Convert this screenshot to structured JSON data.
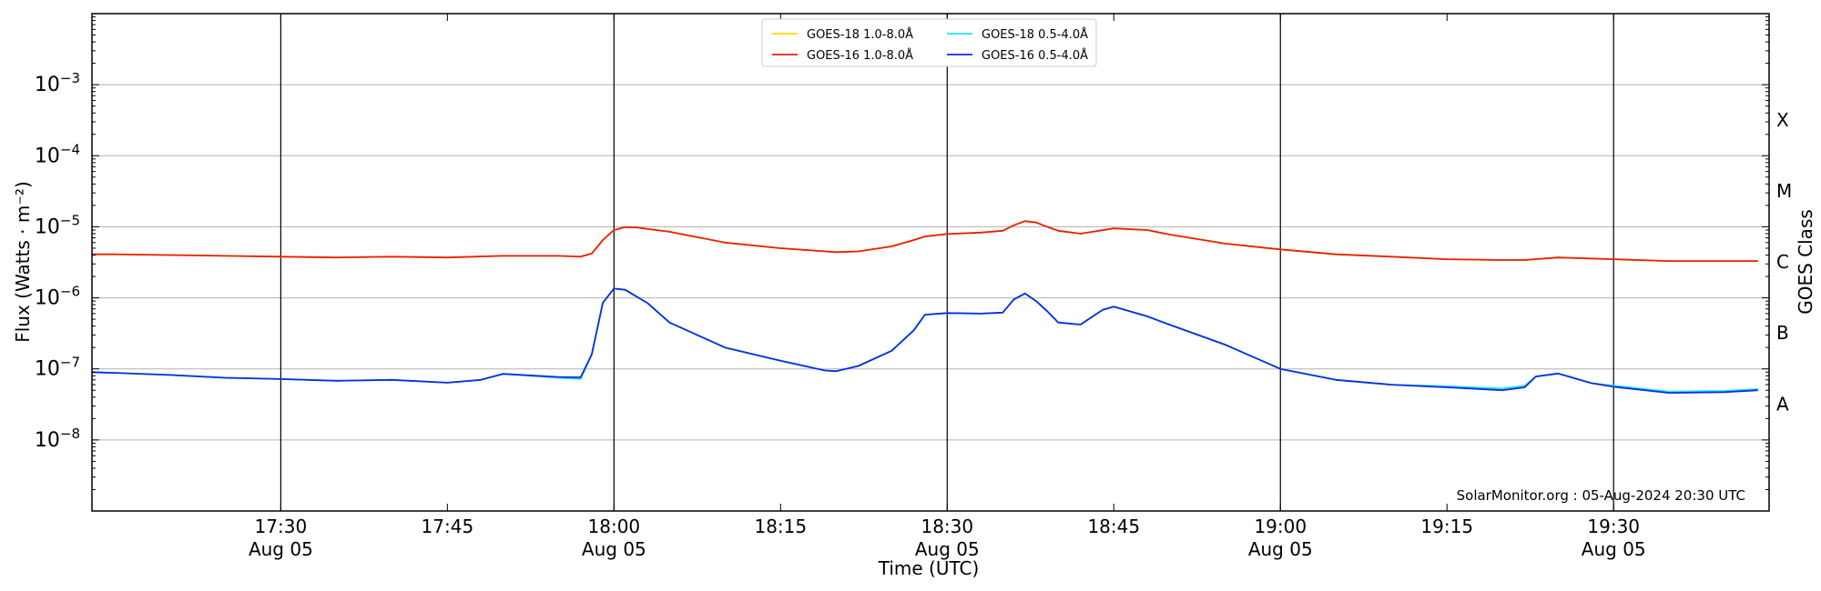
{
  "chart_data": {
    "type": "line",
    "xlabel": "Time (UTC)",
    "ylabel": "Flux (Watts · m⁻²)",
    "right_label": "GOES Class",
    "y_scale": "log",
    "ylim": [
      1e-09,
      0.01
    ],
    "xlim": [
      "17:13",
      "19:44"
    ],
    "grid": "horizontal at decades; vertical lines at 30-minute marks",
    "legend_placement": "top-center",
    "footer": "SolarMonitor.org : 05-Aug-2024 20:30 UTC",
    "x_ticks": [
      {
        "time": "17:30",
        "label": "17:30",
        "sub": "Aug 05"
      },
      {
        "time": "17:45",
        "label": "17:45",
        "sub": ""
      },
      {
        "time": "18:00",
        "label": "18:00",
        "sub": "Aug 05"
      },
      {
        "time": "18:15",
        "label": "18:15",
        "sub": ""
      },
      {
        "time": "18:30",
        "label": "18:30",
        "sub": "Aug 05"
      },
      {
        "time": "18:45",
        "label": "18:45",
        "sub": ""
      },
      {
        "time": "19:00",
        "label": "19:00",
        "sub": "Aug 05"
      },
      {
        "time": "19:15",
        "label": "19:15",
        "sub": ""
      },
      {
        "time": "19:30",
        "label": "19:30",
        "sub": "Aug 05"
      }
    ],
    "vlines": [
      "17:30",
      "18:00",
      "18:30",
      "19:00",
      "19:30"
    ],
    "y_ticks": [
      {
        "value": 1e-08,
        "base": "10",
        "exp": "−8"
      },
      {
        "value": 1e-07,
        "base": "10",
        "exp": "−7"
      },
      {
        "value": 1e-06,
        "base": "10",
        "exp": "−6"
      },
      {
        "value": 1e-05,
        "base": "10",
        "exp": "−5"
      },
      {
        "value": 0.0001,
        "base": "10",
        "exp": "−4"
      },
      {
        "value": 0.001,
        "base": "10",
        "exp": "−3"
      }
    ],
    "goes_classes": [
      {
        "label": "A",
        "value": 3.2e-08
      },
      {
        "label": "B",
        "value": 3.2e-07
      },
      {
        "label": "C",
        "value": 3.2e-06
      },
      {
        "label": "M",
        "value": 3.2e-05
      },
      {
        "label": "X",
        "value": 0.00032
      }
    ],
    "series": [
      {
        "name": "GOES-18 1.0-8.0Å",
        "color": "#FFD700",
        "x": [
          "17:13",
          "17:15",
          "17:20",
          "17:25",
          "17:30",
          "17:35",
          "17:40",
          "17:45",
          "17:50",
          "17:55",
          "17:57",
          "17:58",
          "17:59",
          "18:00",
          "18:01",
          "18:02",
          "18:05",
          "18:10",
          "18:15",
          "18:20",
          "18:22",
          "18:25",
          "18:27",
          "18:28",
          "18:30",
          "18:33",
          "18:35",
          "18:36",
          "18:37",
          "18:38",
          "18:39",
          "18:40",
          "18:42",
          "18:45",
          "18:48",
          "18:50",
          "18:55",
          "19:00",
          "19:05",
          "19:10",
          "19:15",
          "19:20",
          "19:22",
          "19:25",
          "19:30",
          "19:35",
          "19:40",
          "19:43"
        ],
        "y": [
          4.1e-06,
          4.1e-06,
          4e-06,
          3.9e-06,
          3.8e-06,
          3.7e-06,
          3.8e-06,
          3.7e-06,
          3.9e-06,
          3.9e-06,
          3.8e-06,
          4.2e-06,
          6.5e-06,
          9e-06,
          9.9e-06,
          9.8e-06,
          8.5e-06,
          6e-06,
          5e-06,
          4.4e-06,
          4.5e-06,
          5.3e-06,
          6.5e-06,
          7.3e-06,
          7.9e-06,
          8.3e-06,
          8.8e-06,
          1.05e-05,
          1.2e-05,
          1.15e-05,
          1e-05,
          8.8e-06,
          8e-06,
          9.5e-06,
          9e-06,
          7.8e-06,
          5.8e-06,
          4.8e-06,
          4.1e-06,
          3.8e-06,
          3.5e-06,
          3.4e-06,
          3.4e-06,
          3.7e-06,
          3.5e-06,
          3.3e-06,
          3.3e-06,
          3.3e-06
        ]
      },
      {
        "name": "GOES-16 1.0-8.0Å",
        "color": "#E8200C",
        "x": [
          "17:13",
          "17:15",
          "17:20",
          "17:25",
          "17:30",
          "17:35",
          "17:40",
          "17:45",
          "17:50",
          "17:55",
          "17:57",
          "17:58",
          "17:59",
          "18:00",
          "18:01",
          "18:02",
          "18:05",
          "18:10",
          "18:15",
          "18:20",
          "18:22",
          "18:25",
          "18:27",
          "18:28",
          "18:30",
          "18:33",
          "18:35",
          "18:36",
          "18:37",
          "18:38",
          "18:39",
          "18:40",
          "18:42",
          "18:45",
          "18:48",
          "18:50",
          "18:55",
          "19:00",
          "19:05",
          "19:10",
          "19:15",
          "19:20",
          "19:22",
          "19:25",
          "19:30",
          "19:35",
          "19:40",
          "19:43"
        ],
        "y": [
          4.1e-06,
          4.1e-06,
          4e-06,
          3.9e-06,
          3.8e-06,
          3.7e-06,
          3.8e-06,
          3.7e-06,
          3.9e-06,
          3.9e-06,
          3.8e-06,
          4.2e-06,
          6.5e-06,
          9e-06,
          9.9e-06,
          9.8e-06,
          8.5e-06,
          6e-06,
          5e-06,
          4.4e-06,
          4.5e-06,
          5.3e-06,
          6.5e-06,
          7.3e-06,
          7.9e-06,
          8.3e-06,
          8.8e-06,
          1.05e-05,
          1.2e-05,
          1.15e-05,
          1e-05,
          8.8e-06,
          8e-06,
          9.5e-06,
          9e-06,
          7.8e-06,
          5.8e-06,
          4.8e-06,
          4.1e-06,
          3.8e-06,
          3.5e-06,
          3.4e-06,
          3.4e-06,
          3.7e-06,
          3.5e-06,
          3.3e-06,
          3.3e-06,
          3.3e-06
        ]
      },
      {
        "name": "GOES-18 0.5-4.0Å",
        "color": "#22E0F0",
        "x": [
          "17:13",
          "17:15",
          "17:20",
          "17:25",
          "17:30",
          "17:35",
          "17:40",
          "17:45",
          "17:48",
          "17:50",
          "17:55",
          "17:57",
          "17:58",
          "17:59",
          "18:00",
          "18:01",
          "18:03",
          "18:05",
          "18:10",
          "18:15",
          "18:19",
          "18:20",
          "18:22",
          "18:25",
          "18:27",
          "18:28",
          "18:30",
          "18:33",
          "18:35",
          "18:36",
          "18:37",
          "18:38",
          "18:39",
          "18:40",
          "18:42",
          "18:44",
          "18:45",
          "18:48",
          "18:50",
          "18:55",
          "19:00",
          "19:05",
          "19:10",
          "19:15",
          "19:20",
          "19:22",
          "19:23",
          "19:25",
          "19:28",
          "19:30",
          "19:35",
          "19:40",
          "19:43"
        ],
        "y": [
          9e-08,
          8.8e-08,
          8.2e-08,
          7.5e-08,
          7.2e-08,
          6.8e-08,
          7e-08,
          6.4e-08,
          7e-08,
          8.5e-08,
          7.5e-08,
          7.2e-08,
          1.6e-07,
          8.5e-07,
          1.35e-06,
          1.3e-06,
          8.5e-07,
          4.5e-07,
          2e-07,
          1.3e-07,
          9.5e-08,
          9.3e-08,
          1.1e-07,
          1.8e-07,
          3.5e-07,
          5.8e-07,
          6.1e-07,
          6e-07,
          6.2e-07,
          9.5e-07,
          1.15e-06,
          9e-07,
          6.5e-07,
          4.5e-07,
          4.2e-07,
          6.8e-07,
          7.5e-07,
          5.5e-07,
          4.2e-07,
          2.2e-07,
          1e-07,
          7e-08,
          6e-08,
          5.7e-08,
          5.3e-08,
          5.8e-08,
          7.8e-08,
          8.6e-08,
          6.3e-08,
          5.8e-08,
          4.8e-08,
          4.9e-08,
          5.2e-08
        ]
      },
      {
        "name": "GOES-16 0.5-4.0Å",
        "color": "#0A2EE0",
        "x": [
          "17:13",
          "17:15",
          "17:20",
          "17:25",
          "17:30",
          "17:35",
          "17:40",
          "17:45",
          "17:48",
          "17:50",
          "17:55",
          "17:57",
          "17:58",
          "17:59",
          "18:00",
          "18:01",
          "18:03",
          "18:05",
          "18:10",
          "18:15",
          "18:19",
          "18:20",
          "18:22",
          "18:25",
          "18:27",
          "18:28",
          "18:30",
          "18:33",
          "18:35",
          "18:36",
          "18:37",
          "18:38",
          "18:39",
          "18:40",
          "18:42",
          "18:44",
          "18:45",
          "18:48",
          "18:50",
          "18:55",
          "19:00",
          "19:05",
          "19:10",
          "19:15",
          "19:20",
          "19:22",
          "19:23",
          "19:25",
          "19:28",
          "19:30",
          "19:35",
          "19:40",
          "19:43"
        ],
        "y": [
          9e-08,
          8.8e-08,
          8.2e-08,
          7.5e-08,
          7.2e-08,
          6.8e-08,
          7e-08,
          6.4e-08,
          7e-08,
          8.5e-08,
          7.7e-08,
          7.6e-08,
          1.6e-07,
          8.5e-07,
          1.35e-06,
          1.3e-06,
          8.5e-07,
          4.5e-07,
          2e-07,
          1.3e-07,
          9.5e-08,
          9.3e-08,
          1.1e-07,
          1.8e-07,
          3.5e-07,
          5.8e-07,
          6.1e-07,
          6e-07,
          6.2e-07,
          9.5e-07,
          1.15e-06,
          9e-07,
          6.5e-07,
          4.5e-07,
          4.2e-07,
          6.8e-07,
          7.5e-07,
          5.5e-07,
          4.2e-07,
          2.2e-07,
          1e-07,
          7e-08,
          6e-08,
          5.5e-08,
          5e-08,
          5.5e-08,
          7.8e-08,
          8.6e-08,
          6.3e-08,
          5.6e-08,
          4.6e-08,
          4.7e-08,
          5e-08
        ]
      }
    ]
  }
}
